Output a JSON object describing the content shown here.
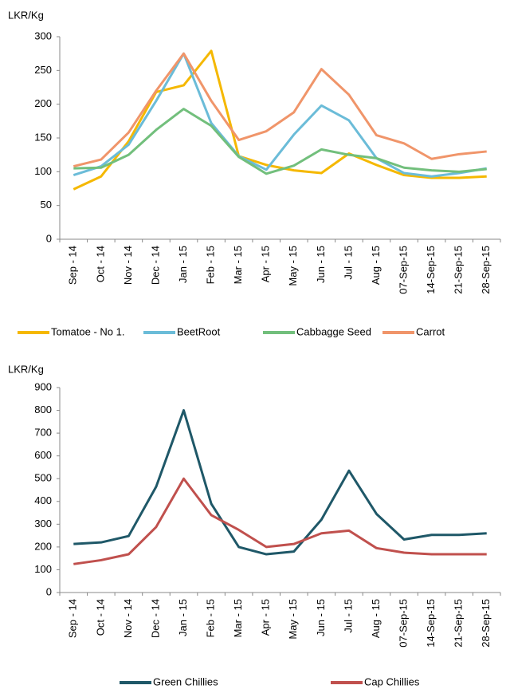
{
  "chart_data": [
    {
      "type": "line",
      "y_label": "LKR/Kg",
      "categories": [
        "Sep - 14",
        "Oct - 14",
        "Nov - 14",
        "Dec - 14",
        "Jan - 15",
        "Feb - 15",
        "Mar - 15",
        "Apr - 15",
        "May - 15",
        "Jun - 15",
        "Jul - 15",
        "Aug - 15",
        "07-Sep-15",
        "14-Sep-15",
        "21-Sep-15",
        "28-Sep-15"
      ],
      "series": [
        {
          "name": "Tomatoe - No 1.",
          "color": "#f5b800",
          "values": [
            74,
            93,
            145,
            218,
            228,
            279,
            123,
            110,
            102,
            98,
            127,
            110,
            95,
            91,
            91,
            93
          ]
        },
        {
          "name": "BeetRoot",
          "color": "#6bbcd8",
          "values": [
            95,
            108,
            140,
            205,
            275,
            172,
            123,
            103,
            155,
            198,
            176,
            120,
            98,
            93,
            98,
            105
          ]
        },
        {
          "name": "Cabbagge Seed",
          "color": "#72bf7c",
          "values": [
            105,
            106,
            125,
            162,
            193,
            168,
            122,
            97,
            109,
            133,
            125,
            120,
            106,
            102,
            100,
            104
          ]
        },
        {
          "name": "Carrot",
          "color": "#f0956a",
          "values": [
            108,
            118,
            158,
            220,
            275,
            205,
            147,
            160,
            188,
            252,
            214,
            154,
            142,
            119,
            126,
            130
          ]
        }
      ],
      "ylim": [
        0,
        300
      ],
      "yticks": [
        0,
        50,
        100,
        150,
        200,
        250,
        300
      ]
    },
    {
      "type": "line",
      "y_label": "LKR/Kg",
      "categories": [
        "Sep - 14",
        "Oct - 14",
        "Nov - 14",
        "Dec - 14",
        "Jan - 15",
        "Feb - 15",
        "Mar - 15",
        "Apr - 15",
        "May - 15",
        "Jun - 15",
        "Jul - 15",
        "Aug - 15",
        "07-Sep-15",
        "14-Sep-15",
        "21-Sep-15",
        "28-Sep-15"
      ],
      "series": [
        {
          "name": "Green Chillies",
          "color": "#1f5868",
          "values": [
            213,
            220,
            248,
            465,
            800,
            390,
            200,
            168,
            180,
            320,
            535,
            345,
            233,
            253,
            253,
            260
          ]
        },
        {
          "name": "Cap Chillies",
          "color": "#c0504d",
          "values": [
            125,
            142,
            168,
            288,
            500,
            340,
            275,
            200,
            213,
            260,
            272,
            195,
            175,
            168,
            168,
            168
          ]
        }
      ],
      "ylim": [
        0,
        900
      ],
      "yticks": [
        0,
        100,
        200,
        300,
        400,
        500,
        600,
        700,
        800,
        900
      ]
    }
  ]
}
